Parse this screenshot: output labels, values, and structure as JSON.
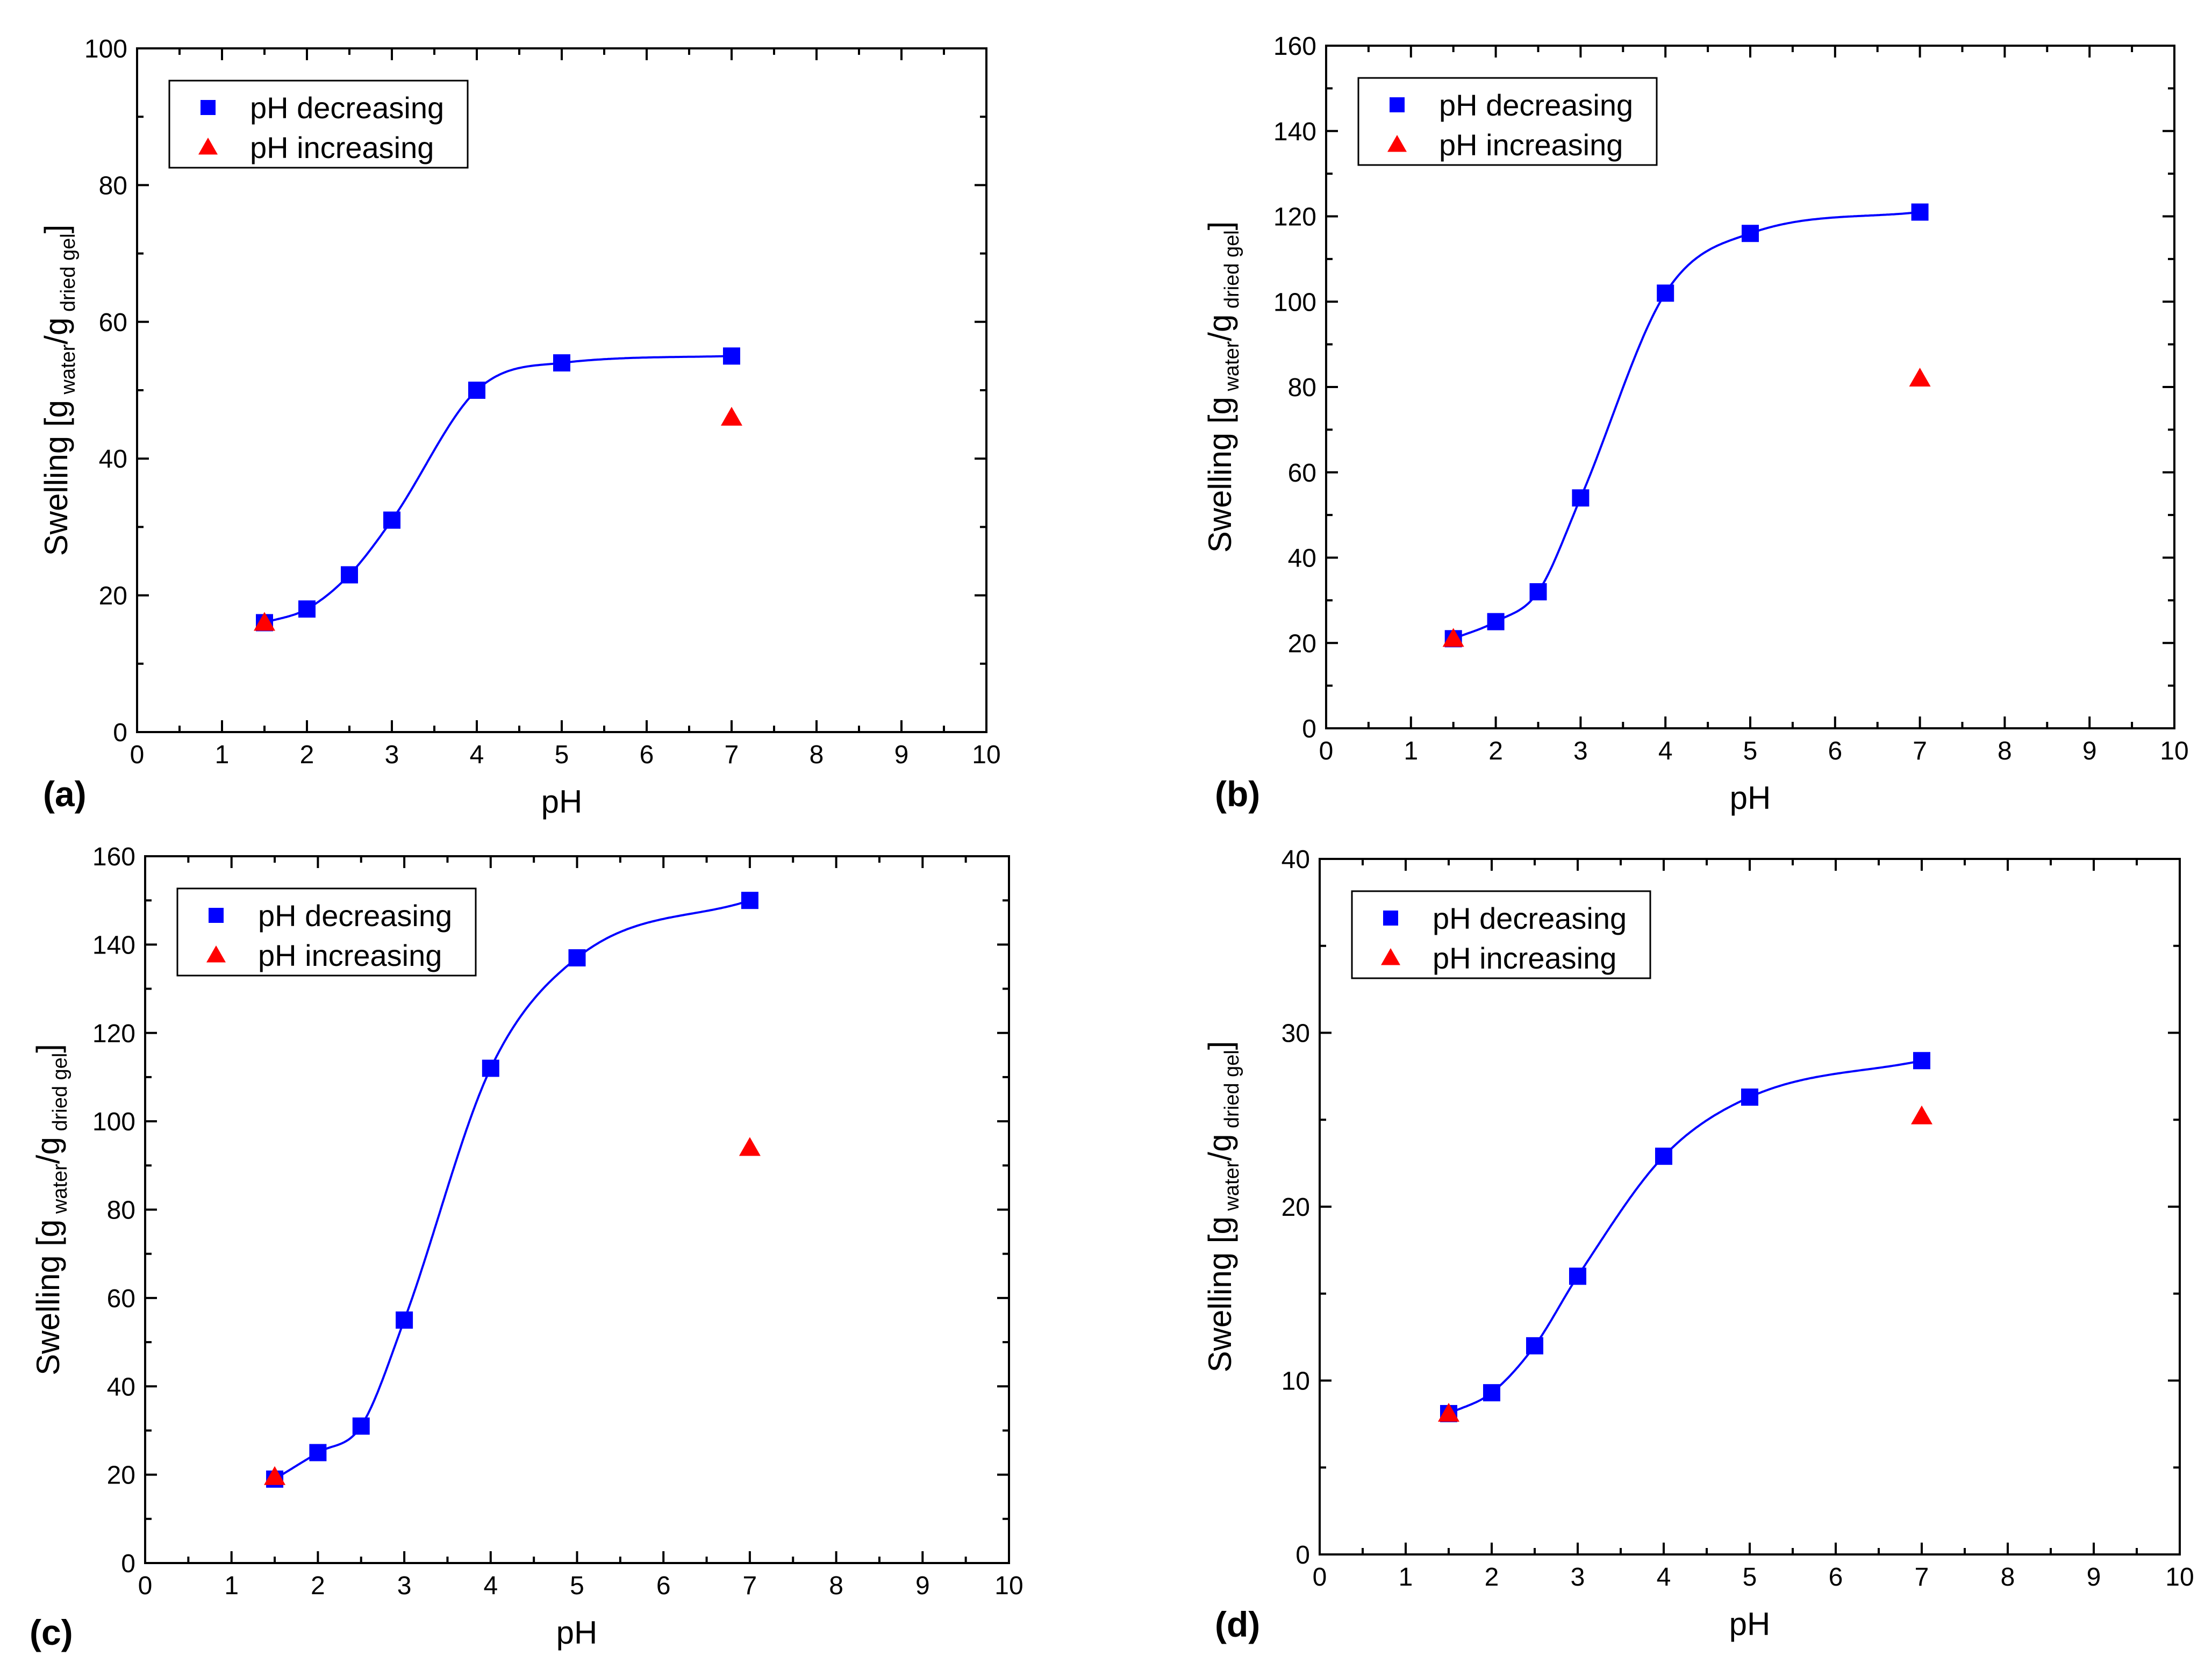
{
  "colors": {
    "decreasing": "#0000ff",
    "increasing": "#ff0000",
    "fit_line": "#0000ff",
    "axes": "#000000"
  },
  "chart_data": [
    {
      "panel": "(a)",
      "type": "scatter",
      "xlabel": "pH",
      "ylabel": "Swelling [g water/g dried gel]",
      "ylabel_parts": {
        "main": "Swelling [g",
        "sub1": "water",
        "mid": "/g",
        "sub2": "dried gel",
        "end": "]"
      },
      "xlim": [
        0,
        10
      ],
      "ylim": [
        0,
        100
      ],
      "xticks": [
        0,
        1,
        2,
        3,
        4,
        5,
        6,
        7,
        8,
        9,
        10
      ],
      "yticks": [
        0,
        20,
        40,
        60,
        80,
        100
      ],
      "legend_position": "top-left",
      "series": [
        {
          "name": "pH decreasing",
          "marker": "square",
          "x": [
            1.5,
            2,
            2.5,
            3,
            4,
            5,
            7
          ],
          "y": [
            16,
            18,
            23,
            31,
            50,
            54,
            55
          ],
          "fit": true
        },
        {
          "name": "pH increasing",
          "marker": "triangle",
          "x": [
            1.5,
            7
          ],
          "y": [
            16,
            46
          ],
          "fit": false
        }
      ]
    },
    {
      "panel": "(b)",
      "type": "scatter",
      "xlabel": "pH",
      "ylabel": "Swelling [g water/g dried gel]",
      "ylabel_parts": {
        "main": "Swelling [g",
        "sub1": "water",
        "mid": "/g",
        "sub2": "dried gel",
        "end": "]"
      },
      "xlim": [
        0,
        10
      ],
      "ylim": [
        0,
        160
      ],
      "xticks": [
        0,
        1,
        2,
        3,
        4,
        5,
        6,
        7,
        8,
        9,
        10
      ],
      "yticks": [
        0,
        20,
        40,
        60,
        80,
        100,
        120,
        140,
        160
      ],
      "legend_position": "top-left",
      "series": [
        {
          "name": "pH decreasing",
          "marker": "square",
          "x": [
            1.5,
            2,
            2.5,
            3,
            4,
            5,
            7
          ],
          "y": [
            21,
            25,
            32,
            54,
            102,
            116,
            121
          ],
          "fit": true
        },
        {
          "name": "pH increasing",
          "marker": "triangle",
          "x": [
            1.5,
            7
          ],
          "y": [
            21,
            82
          ],
          "fit": false
        }
      ]
    },
    {
      "panel": "(c)",
      "type": "scatter",
      "xlabel": "pH",
      "ylabel": "Swelling [g water/g dried gel]",
      "ylabel_parts": {
        "main": "Swelling [g",
        "sub1": "water",
        "mid": "/g",
        "sub2": "dried gel",
        "end": "]"
      },
      "xlim": [
        0,
        10
      ],
      "ylim": [
        0,
        160
      ],
      "xticks": [
        0,
        1,
        2,
        3,
        4,
        5,
        6,
        7,
        8,
        9,
        10
      ],
      "yticks": [
        0,
        20,
        40,
        60,
        80,
        100,
        120,
        140,
        160
      ],
      "legend_position": "top-left",
      "series": [
        {
          "name": "pH decreasing",
          "marker": "square",
          "x": [
            1.5,
            2,
            2.5,
            3,
            4,
            5,
            7
          ],
          "y": [
            19,
            25,
            31,
            55,
            112,
            137,
            150
          ],
          "fit": true
        },
        {
          "name": "pH increasing",
          "marker": "triangle",
          "x": [
            1.5,
            7
          ],
          "y": [
            19.5,
            94
          ],
          "fit": false
        }
      ]
    },
    {
      "panel": "(d)",
      "type": "scatter",
      "xlabel": "pH",
      "ylabel": "Swelling [g water/g dried gel]",
      "ylabel_parts": {
        "main": "Swelling [g",
        "sub1": "water",
        "mid": "/g",
        "sub2": "dried gel",
        "end": "]"
      },
      "xlim": [
        0,
        10
      ],
      "ylim": [
        0,
        40
      ],
      "xticks": [
        0,
        1,
        2,
        3,
        4,
        5,
        6,
        7,
        8,
        9,
        10
      ],
      "yticks": [
        0,
        10,
        20,
        30,
        40
      ],
      "legend_position": "top-left",
      "series": [
        {
          "name": "pH decreasing",
          "marker": "square",
          "x": [
            1.5,
            2,
            2.5,
            3,
            4,
            5,
            7
          ],
          "y": [
            8.1,
            9.3,
            12,
            16,
            22.9,
            26.3,
            28.4
          ],
          "fit": true
        },
        {
          "name": "pH increasing",
          "marker": "triangle",
          "x": [
            1.5,
            7
          ],
          "y": [
            8.1,
            25.2
          ],
          "fit": false
        }
      ]
    }
  ]
}
